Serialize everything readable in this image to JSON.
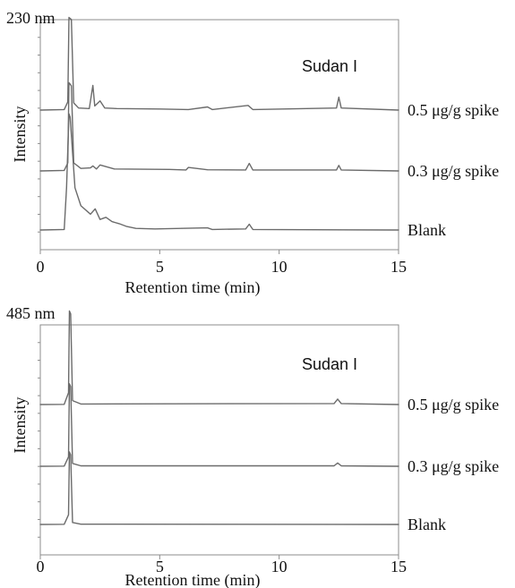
{
  "chart_data": [
    {
      "type": "line",
      "title": "230 nm",
      "xlabel": "Retention time (min)",
      "ylabel": "Intensity",
      "xlim": [
        0,
        15
      ],
      "xticks": [
        0,
        5,
        10,
        15
      ],
      "grid": false,
      "peak_annotation": {
        "label": "Sudan I",
        "x": 12.5
      },
      "series": [
        {
          "name": "0.5 μg/g spike",
          "points": [
            [
              0,
              0.0
            ],
            [
              1.0,
              0.05
            ],
            [
              1.15,
              0.8
            ],
            [
              1.2,
              9.0
            ],
            [
              1.3,
              8.8
            ],
            [
              1.4,
              0.7
            ],
            [
              1.6,
              0.2
            ],
            [
              2.05,
              0.15
            ],
            [
              2.2,
              2.4
            ],
            [
              2.28,
              0.4
            ],
            [
              2.5,
              0.9
            ],
            [
              2.7,
              0.2
            ],
            [
              3.2,
              0.15
            ],
            [
              5.0,
              0.1
            ],
            [
              6.2,
              0.05
            ],
            [
              7.0,
              0.3
            ],
            [
              7.2,
              0.05
            ],
            [
              8.7,
              0.45
            ],
            [
              8.9,
              0.05
            ],
            [
              12.4,
              0.2
            ],
            [
              12.5,
              1.25
            ],
            [
              12.6,
              0.2
            ],
            [
              15.0,
              0.0
            ]
          ]
        },
        {
          "name": "0.3 μg/g spike",
          "points": [
            [
              0,
              0.0
            ],
            [
              1.0,
              0.05
            ],
            [
              1.15,
              0.8
            ],
            [
              1.2,
              8.8
            ],
            [
              1.3,
              8.5
            ],
            [
              1.4,
              0.8
            ],
            [
              1.7,
              0.25
            ],
            [
              2.1,
              0.3
            ],
            [
              2.2,
              0.5
            ],
            [
              2.35,
              0.2
            ],
            [
              2.5,
              0.6
            ],
            [
              3.1,
              0.2
            ],
            [
              5.4,
              0.15
            ],
            [
              6.1,
              0.1
            ],
            [
              6.2,
              0.35
            ],
            [
              7.0,
              0.12
            ],
            [
              8.6,
              0.1
            ],
            [
              8.75,
              0.75
            ],
            [
              8.9,
              0.1
            ],
            [
              12.4,
              0.1
            ],
            [
              12.5,
              0.55
            ],
            [
              12.6,
              0.1
            ],
            [
              15.0,
              0.0
            ]
          ]
        },
        {
          "name": "Blank",
          "points": [
            [
              0,
              0.0
            ],
            [
              1.0,
              0.05
            ],
            [
              1.1,
              4.0
            ],
            [
              1.2,
              11.0
            ],
            [
              1.25,
              10.7
            ],
            [
              1.45,
              4.0
            ],
            [
              1.7,
              2.3
            ],
            [
              2.1,
              1.5
            ],
            [
              2.3,
              2.0
            ],
            [
              2.5,
              1.0
            ],
            [
              2.75,
              1.2
            ],
            [
              3.0,
              0.8
            ],
            [
              3.3,
              0.6
            ],
            [
              3.6,
              0.35
            ],
            [
              4.0,
              0.15
            ],
            [
              4.8,
              0.1
            ],
            [
              7.0,
              0.2
            ],
            [
              7.2,
              0.05
            ],
            [
              8.6,
              0.1
            ],
            [
              8.75,
              0.55
            ],
            [
              8.9,
              0.05
            ],
            [
              15.0,
              0.0
            ]
          ]
        }
      ]
    },
    {
      "type": "line",
      "title": "485 nm",
      "xlabel": "Retention time (min)",
      "ylabel": "Intensity",
      "xlim": [
        0,
        15
      ],
      "xticks": [
        0,
        5,
        10,
        15
      ],
      "grid": false,
      "peak_annotation": {
        "label": "Sudan I",
        "x": 12.5
      },
      "series": [
        {
          "name": "0.5 μg/g spike",
          "points": [
            [
              0,
              0.0
            ],
            [
              1.0,
              0.02
            ],
            [
              1.18,
              1.2
            ],
            [
              1.22,
              9.5
            ],
            [
              1.27,
              9.2
            ],
            [
              1.35,
              0.4
            ],
            [
              1.7,
              0.05
            ],
            [
              12.3,
              0.1
            ],
            [
              12.45,
              0.55
            ],
            [
              12.6,
              0.1
            ],
            [
              15.0,
              0.0
            ]
          ]
        },
        {
          "name": "0.3 μg/g spike",
          "points": [
            [
              0,
              0.0
            ],
            [
              1.0,
              0.02
            ],
            [
              1.18,
              1.0
            ],
            [
              1.22,
              8.7
            ],
            [
              1.27,
              8.4
            ],
            [
              1.35,
              0.3
            ],
            [
              1.7,
              0.05
            ],
            [
              12.3,
              0.05
            ],
            [
              12.45,
              0.35
            ],
            [
              12.6,
              0.05
            ],
            [
              15.0,
              0.0
            ]
          ]
        },
        {
          "name": "Blank",
          "points": [
            [
              0,
              0.0
            ],
            [
              1.0,
              0.02
            ],
            [
              1.18,
              1.0
            ],
            [
              1.22,
              7.5
            ],
            [
              1.27,
              7.2
            ],
            [
              1.35,
              0.2
            ],
            [
              1.7,
              0.03
            ],
            [
              15.0,
              0.0
            ]
          ]
        }
      ]
    }
  ]
}
